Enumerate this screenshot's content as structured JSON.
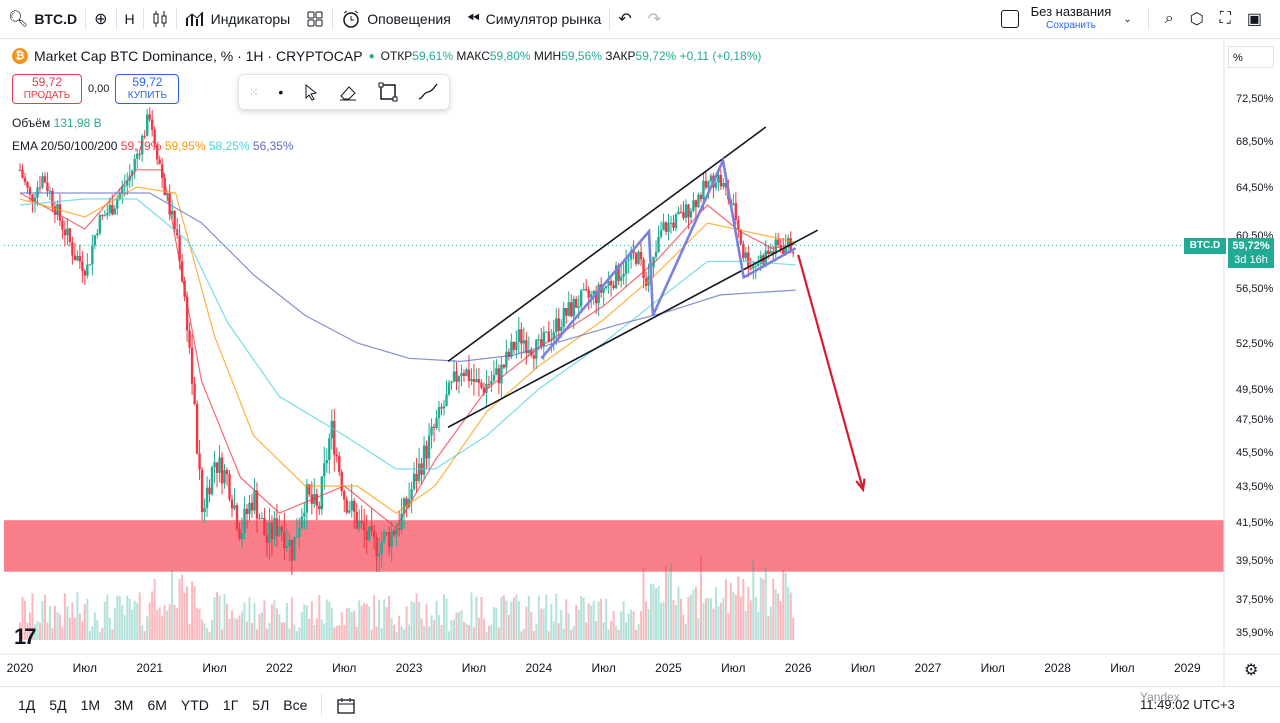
{
  "toolbar": {
    "symbol": "BTC.D",
    "interval": "H",
    "indicators_label": "Индикаторы",
    "alerts_label": "Оповещения",
    "replay_label": "Симулятор рынка",
    "layout_name": "Без названия",
    "save_label": "Сохранить"
  },
  "legend": {
    "title": "Market Cap BTC Dominance, % · 1H · CRYPTOCAP",
    "open_label": "ОТКР",
    "open": "59,61%",
    "high_label": "МАКС",
    "high": "59,80%",
    "low_label": "МИН",
    "low": "59,56%",
    "close_label": "ЗАКР",
    "close": "59,72%",
    "change": "+0,11 (+0,18%)"
  },
  "trade": {
    "sell_price": "59,72",
    "sell_label": "ПРОДАТЬ",
    "spread": "0,00",
    "buy_price": "59,72",
    "buy_label": "КУПИТЬ"
  },
  "indicators": {
    "volume_label": "Объём",
    "volume_value": "131,98 B",
    "ema_label": "EMA 20/50/100/200",
    "ema_values": [
      "59,79%",
      "59,95%",
      "58,25%",
      "56,35%"
    ],
    "ema_colors": [
      "#f23645",
      "#ff9800",
      "#4dd0e1",
      "#5c6bc0"
    ]
  },
  "price_scale": {
    "unit": "%",
    "current_symbol": "BTC.D",
    "current_price": "59,72%",
    "countdown": "3d 16h"
  },
  "bottom": {
    "ranges": [
      "1Д",
      "5Д",
      "1М",
      "3М",
      "6М",
      "YTD",
      "1Г",
      "5Л",
      "Все"
    ],
    "time_display": "11:49:02 UTC+3",
    "watermark": "Yandex"
  },
  "colors": {
    "up": "#22ab94",
    "down": "#f23645",
    "zone": "#f87784",
    "arrow": "#d81b2a"
  },
  "chart_data": {
    "type": "candlestick",
    "title": "Market Cap BTC Dominance, %",
    "y_ticks": [
      72.5,
      68.5,
      64.5,
      60.5,
      56.5,
      52.5,
      49.5,
      47.5,
      45.5,
      43.5,
      41.5,
      39.5,
      37.5,
      35.9
    ],
    "y_tick_labels": [
      "72,50%",
      "68,50%",
      "64,50%",
      "60,50%",
      "56,50%",
      "52,50%",
      "49,50%",
      "47,50%",
      "45,50%",
      "43,50%",
      "41,50%",
      "39,50%",
      "37,50%",
      "35,90%"
    ],
    "x_ticks": [
      2020,
      2020.5,
      2021,
      2021.5,
      2022,
      2022.5,
      2023,
      2023.5,
      2024,
      2024.5,
      2025,
      2025.5,
      2026,
      2026.5,
      2027,
      2027.5,
      2028,
      2028.5,
      2029
    ],
    "x_tick_labels": [
      "2020",
      "Июл",
      "2021",
      "Июл",
      "2022",
      "Июл",
      "2023",
      "Июл",
      "2024",
      "Июл",
      "2025",
      "Июл",
      "2026",
      "Июл",
      "2027",
      "Июл",
      "2028",
      "Июл",
      "2029"
    ],
    "price_path": [
      [
        2020.0,
        66.0
      ],
      [
        2020.08,
        63.5
      ],
      [
        2020.18,
        65.5
      ],
      [
        2020.3,
        62.0
      ],
      [
        2020.42,
        59.0
      ],
      [
        2020.52,
        58.0
      ],
      [
        2020.6,
        61.5
      ],
      [
        2020.72,
        63.0
      ],
      [
        2020.85,
        65.5
      ],
      [
        2020.95,
        69.0
      ],
      [
        2021.0,
        71.0
      ],
      [
        2021.05,
        68.0
      ],
      [
        2021.12,
        64.0
      ],
      [
        2021.22,
        60.0
      ],
      [
        2021.3,
        53.0
      ],
      [
        2021.4,
        42.0
      ],
      [
        2021.5,
        45.0
      ],
      [
        2021.6,
        44.0
      ],
      [
        2021.7,
        41.0
      ],
      [
        2021.8,
        43.0
      ],
      [
        2021.9,
        40.5
      ],
      [
        2022.0,
        41.5
      ],
      [
        2022.1,
        40.0
      ],
      [
        2022.2,
        43.0
      ],
      [
        2022.3,
        42.0
      ],
      [
        2022.4,
        47.0
      ],
      [
        2022.5,
        43.0
      ],
      [
        2022.6,
        41.5
      ],
      [
        2022.72,
        40.2
      ],
      [
        2022.85,
        40.8
      ],
      [
        2022.95,
        41.8
      ],
      [
        2023.05,
        44.0
      ],
      [
        2023.15,
        46.0
      ],
      [
        2023.25,
        48.0
      ],
      [
        2023.4,
        51.0
      ],
      [
        2023.55,
        49.5
      ],
      [
        2023.7,
        50.5
      ],
      [
        2023.85,
        53.0
      ],
      [
        2024.0,
        52.0
      ],
      [
        2024.15,
        54.0
      ],
      [
        2024.3,
        55.5
      ],
      [
        2024.45,
        56.0
      ],
      [
        2024.6,
        57.5
      ],
      [
        2024.75,
        59.0
      ],
      [
        2024.85,
        57.0
      ],
      [
        2024.95,
        61.0
      ],
      [
        2025.1,
        62.0
      ],
      [
        2025.25,
        64.0
      ],
      [
        2025.37,
        65.5
      ],
      [
        2025.45,
        64.0
      ],
      [
        2025.52,
        62.0
      ],
      [
        2025.58,
        59.0
      ],
      [
        2025.65,
        58.2
      ],
      [
        2025.75,
        59.0
      ],
      [
        2025.85,
        59.6
      ],
      [
        2025.95,
        59.7
      ]
    ],
    "series": [
      {
        "name": "EMA 20",
        "color": "#f23645",
        "points": [
          [
            2020.0,
            64
          ],
          [
            2020.5,
            61
          ],
          [
            2020.9,
            66
          ],
          [
            2021.1,
            66
          ],
          [
            2021.4,
            50
          ],
          [
            2021.7,
            44
          ],
          [
            2022.0,
            42
          ],
          [
            2022.5,
            43.5
          ],
          [
            2022.9,
            41.2
          ],
          [
            2023.2,
            45
          ],
          [
            2023.6,
            49.5
          ],
          [
            2024.0,
            52.2
          ],
          [
            2024.5,
            55.2
          ],
          [
            2024.9,
            58.5
          ],
          [
            2025.3,
            63
          ],
          [
            2025.55,
            60.8
          ],
          [
            2025.8,
            59.5
          ],
          [
            2025.98,
            59.8
          ]
        ]
      },
      {
        "name": "EMA 50",
        "color": "#ff9800",
        "points": [
          [
            2020.0,
            63.5
          ],
          [
            2020.5,
            62
          ],
          [
            2020.9,
            64.5
          ],
          [
            2021.2,
            64
          ],
          [
            2021.5,
            53
          ],
          [
            2021.8,
            46.5
          ],
          [
            2022.2,
            43.5
          ],
          [
            2022.6,
            43.5
          ],
          [
            2022.9,
            42
          ],
          [
            2023.2,
            43.5
          ],
          [
            2023.6,
            48
          ],
          [
            2024.0,
            51
          ],
          [
            2024.5,
            54.2
          ],
          [
            2024.9,
            57.5
          ],
          [
            2025.3,
            61.5
          ],
          [
            2025.6,
            60.8
          ],
          [
            2025.98,
            59.95
          ]
        ]
      },
      {
        "name": "EMA 100",
        "color": "#4dd0e1",
        "points": [
          [
            2020.0,
            63
          ],
          [
            2020.5,
            63.5
          ],
          [
            2020.9,
            63.5
          ],
          [
            2021.3,
            60
          ],
          [
            2021.6,
            54
          ],
          [
            2022.0,
            49
          ],
          [
            2022.5,
            46.5
          ],
          [
            2022.9,
            44.5
          ],
          [
            2023.2,
            44.5
          ],
          [
            2023.6,
            46.5
          ],
          [
            2024.0,
            49.5
          ],
          [
            2024.5,
            52.5
          ],
          [
            2024.9,
            55.5
          ],
          [
            2025.3,
            58.5
          ],
          [
            2025.6,
            58.5
          ],
          [
            2025.98,
            58.25
          ]
        ]
      },
      {
        "name": "EMA 200",
        "color": "#5c6bc0",
        "points": [
          [
            2020.0,
            64
          ],
          [
            2020.5,
            64
          ],
          [
            2021.0,
            64
          ],
          [
            2021.4,
            61.5
          ],
          [
            2021.8,
            57.5
          ],
          [
            2022.2,
            54.5
          ],
          [
            2022.6,
            52.5
          ],
          [
            2023.0,
            51.5
          ],
          [
            2023.4,
            51.3
          ],
          [
            2023.8,
            51.7
          ],
          [
            2024.2,
            52.7
          ],
          [
            2024.6,
            53.8
          ],
          [
            2025.0,
            54.8
          ],
          [
            2025.4,
            56
          ],
          [
            2025.98,
            56.35
          ]
        ]
      }
    ],
    "channel_lines": [
      {
        "from": [
          2023.3,
          51.3
        ],
        "to": [
          2025.75,
          69.8
        ]
      },
      {
        "from": [
          2023.3,
          47.0
        ],
        "to": [
          2026.15,
          60.9
        ]
      }
    ],
    "wave_pattern": [
      [
        2024.02,
        51.5
      ],
      [
        2024.85,
        60.8
      ],
      [
        2024.88,
        54.5
      ],
      [
        2025.42,
        66.8
      ],
      [
        2025.58,
        57.3
      ],
      [
        2025.98,
        59.5
      ]
    ],
    "forecast_arrow": {
      "from": [
        2026.0,
        59.0
      ],
      "to": [
        2026.5,
        43.3
      ]
    },
    "support_zone": [
      38.9,
      41.6
    ],
    "current_price": 59.72
  }
}
